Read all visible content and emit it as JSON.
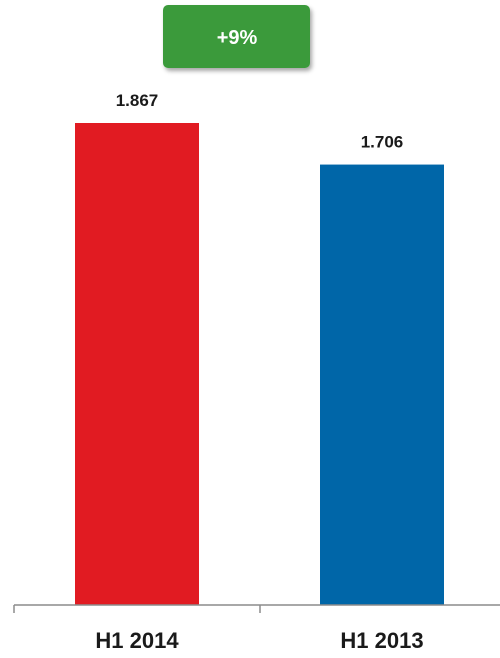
{
  "chart_data": {
    "type": "bar",
    "categories": [
      "H1 2014",
      "H1 2013"
    ],
    "values": [
      1.867,
      1.706
    ],
    "value_labels": [
      "1.867",
      "1.706"
    ],
    "bar_colors": [
      "#e11b22",
      "#0066a8"
    ],
    "ylim": [
      0,
      1.867
    ],
    "grid": false,
    "title": "",
    "xlabel": "",
    "ylabel": "",
    "annotation": {
      "text": "+9%",
      "color": "#3a9a3a"
    }
  }
}
